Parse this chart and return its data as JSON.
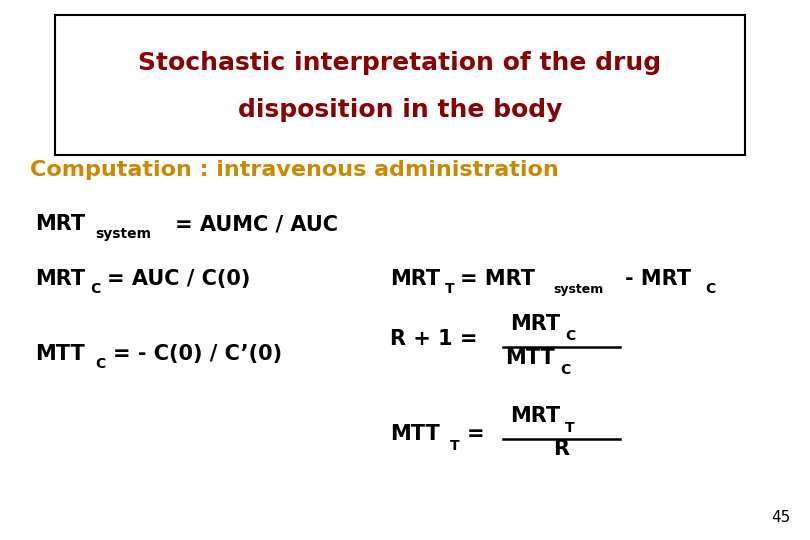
{
  "bg_color": "#ffffff",
  "title_line1": "Stochastic interpretation of the drug",
  "title_line2": "disposition in the body",
  "title_color": "#8B0000",
  "subtitle_text": "Computation : intravenous administration",
  "subtitle_color": "#CC8800",
  "title_fontsize": 18,
  "subtitle_fontsize": 16,
  "body_fontsize": 15,
  "sub_fontsize": 10,
  "small_fontsize": 9,
  "page_number": "45"
}
